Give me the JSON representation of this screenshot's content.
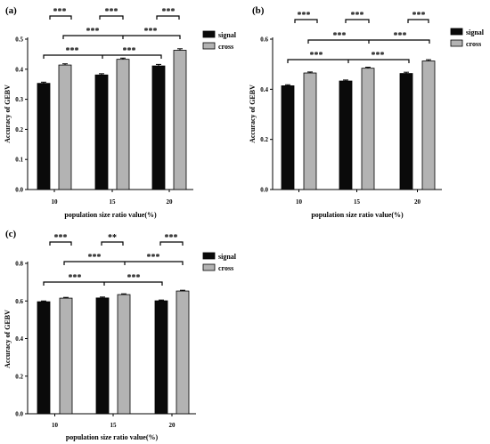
{
  "colors": {
    "signal": "#0a0a0a",
    "cross": "#b3b3b3",
    "axis": "#000000",
    "bar_edge": "#000000"
  },
  "chart_data": [
    {
      "type": "bar",
      "panel_label": "(a)",
      "xlabel": "population size ratio value(%)",
      "ylabel": "Accuracy of GEBV",
      "categories": [
        "10",
        "15",
        "20"
      ],
      "ylim": [
        0.0,
        0.5
      ],
      "yticks": [
        "0.0",
        "0.1",
        "0.2",
        "0.3",
        "0.4",
        "0.5"
      ],
      "legend_position": "top-right",
      "series": [
        {
          "name": "signal",
          "values": [
            0.353,
            0.381,
            0.411
          ],
          "errors": [
            0.004,
            0.004,
            0.005
          ]
        },
        {
          "name": "cross",
          "values": [
            0.414,
            0.433,
            0.463
          ],
          "errors": [
            0.004,
            0.004,
            0.005
          ]
        }
      ],
      "significance": [
        {
          "label": "***"
        },
        {
          "label": "***"
        },
        {
          "label": "***"
        },
        {
          "label": "***"
        },
        {
          "label": "***"
        },
        {
          "label": "***"
        },
        {
          "label": "***"
        }
      ]
    },
    {
      "type": "bar",
      "panel_label": "(b)",
      "xlabel": "population size ratio value(%)",
      "ylabel": "Accuracy of GEBV",
      "categories": [
        "10",
        "15",
        "20"
      ],
      "ylim": [
        0.0,
        0.6
      ],
      "yticks": [
        "0.0",
        "0.2",
        "0.4",
        "0.6"
      ],
      "legend_position": "top-right",
      "series": [
        {
          "name": "signal",
          "values": [
            0.414,
            0.433,
            0.463
          ],
          "errors": [
            0.004,
            0.004,
            0.005
          ]
        },
        {
          "name": "cross",
          "values": [
            0.465,
            0.484,
            0.513
          ],
          "errors": [
            0.004,
            0.004,
            0.005
          ]
        }
      ],
      "significance": [
        {
          "label": "***"
        },
        {
          "label": "***"
        },
        {
          "label": "***"
        },
        {
          "label": "***"
        },
        {
          "label": "***"
        },
        {
          "label": "***"
        },
        {
          "label": "***"
        }
      ]
    },
    {
      "type": "bar",
      "panel_label": "(c)",
      "xlabel": "population size ratio value(%)",
      "ylabel": "Accuracy of GEBV",
      "categories": [
        "10",
        "15",
        "20"
      ],
      "ylim": [
        0.0,
        0.8
      ],
      "yticks": [
        "0.0",
        "0.2",
        "0.4",
        "0.6",
        "0.8"
      ],
      "legend_position": "top-right",
      "series": [
        {
          "name": "signal",
          "values": [
            0.596,
            0.616,
            0.601
          ],
          "errors": [
            0.004,
            0.005,
            0.004
          ]
        },
        {
          "name": "cross",
          "values": [
            0.615,
            0.634,
            0.653
          ],
          "errors": [
            0.004,
            0.004,
            0.004
          ]
        }
      ],
      "significance": [
        {
          "label": "***"
        },
        {
          "label": "**"
        },
        {
          "label": "***"
        },
        {
          "label": "***"
        },
        {
          "label": "***"
        },
        {
          "label": "***"
        },
        {
          "label": "***"
        }
      ]
    }
  ]
}
